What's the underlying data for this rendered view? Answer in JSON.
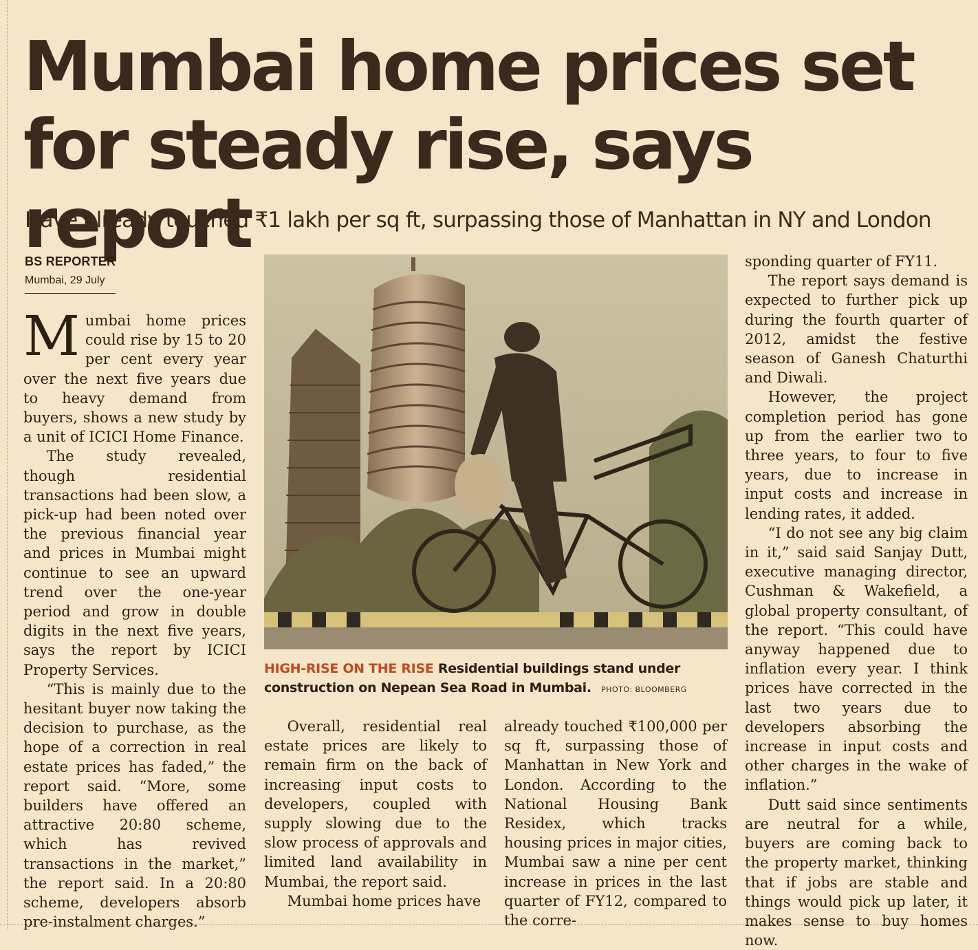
{
  "article": {
    "headline": "Mumbai home prices set for steady rise, says report",
    "deck": "Have already touched ₹1 lakh per sq ft, surpassing those of Manhattan in NY and London",
    "reporter": "BS REPORTER",
    "dateline": "Mumbai, 29 July",
    "drop_cap": "M",
    "col1": [
      "umbai home prices could rise by 15 to 20 per cent every year over the next five years due to heavy demand from buyers, shows a new study by a unit of ICICI Home Finance.",
      "The study revealed, though residential transactions had been slow, a pick-up had been noted over the previous financial year and prices in Mumbai might continue to see an upward trend over the one-year period and grow in double digits in the next five years, says the report by ICICI Property Services.",
      "“This is mainly due to the hesitant buyer now taking the decision to purchase, as the hope of a correction in real estate prices has faded,” the report said. “More, some builders have offered an attractive 20:80 scheme, which has revived transactions in the market,” the report said. In a 20:80 scheme, developers absorb pre-instalment charges.”"
    ],
    "col2": [
      "Overall, residential real estate prices are likely to remain firm on the back of increasing input costs to developers, coupled with supply slowing due to the slow process of approvals and limited land availability in Mumbai, the report said.",
      "Mumbai home prices have"
    ],
    "col3": [
      "already touched ₹100,000 per sq ft, surpassing those of Manhattan in New York and London. According to the National Housing Bank Residex, which tracks housing prices in major cities, Mumbai saw a nine per cent increase in prices in the last quarter of FY12, compared to the corre-"
    ],
    "col4": [
      "sponding quarter of FY11.",
      "The report says demand is expected to further pick up during the fourth quarter of 2012, amidst the festive season of Ganesh Chaturthi and Diwali.",
      "However, the project completion period has gone up from the earlier two to three years, to four to five years, due to increase in input costs and increase in lending rates, it added.",
      "“I do not see any big claim in it,” said said Sanjay Dutt, executive managing director, Cushman & Wakefield, a global property consultant, of the report. “This could have anyway happened due to inflation every year. I think prices have corrected in the last two years due to developers absorbing the increase in input costs and other charges in the wake of inflation.”",
      "Dutt said since sentiments are neutral for a while, buyers are coming back to the property market, thinking that if jobs are stable and things would pick up later, it makes sense to buy homes now."
    ],
    "caption": {
      "kicker": "HIGH-RISE ON THE RISE",
      "text": "Residential buildings stand under construction on Nepean Sea Road in Mumbai.",
      "credit": "PHOTO: BLOOMBERG"
    }
  },
  "colors": {
    "paper": "#f6e6c9",
    "ink": "#2b1f14",
    "kicker": "#c24a1f"
  }
}
